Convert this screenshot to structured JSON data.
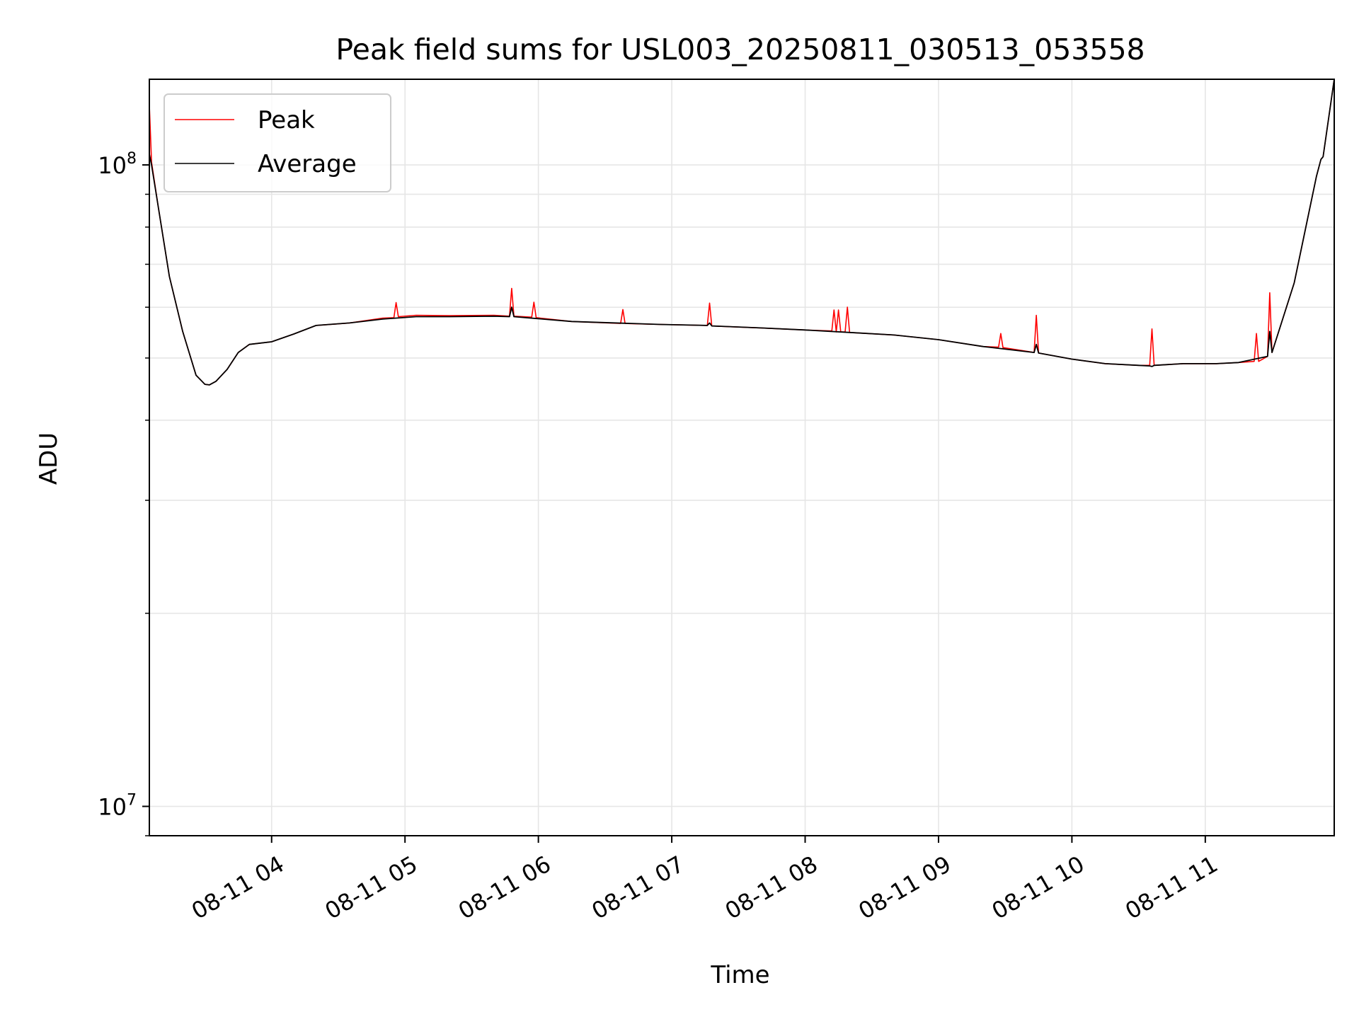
{
  "chart_data": {
    "type": "line",
    "title": "Peak field sums for USL003_20250811_030513_053558",
    "xlabel": "Time",
    "ylabel": "ADU",
    "y_scale": "log",
    "ylim": [
      9000000,
      136000000
    ],
    "xlim": [
      "2025-08-11 03:05",
      "2025-08-11 11:58"
    ],
    "x_ticks": [
      "2025-08-11 04:00",
      "2025-08-11 05:00",
      "2025-08-11 06:00",
      "2025-08-11 07:00",
      "2025-08-11 08:00",
      "2025-08-11 09:00",
      "2025-08-11 10:00",
      "2025-08-11 11:00"
    ],
    "x_tick_labels": [
      "08-11 04",
      "08-11 05",
      "08-11 06",
      "08-11 07",
      "08-11 08",
      "08-11 09",
      "08-11 10",
      "08-11 11"
    ],
    "y_major_ticks": [
      10000000,
      100000000
    ],
    "y_major_labels": [
      {
        "base": "10",
        "exp": "7"
      },
      {
        "base": "10",
        "exp": "8"
      }
    ],
    "grid": true,
    "legend_position": "top-left",
    "series": [
      {
        "name": "Peak",
        "color": "#ff0000",
        "x": [
          "2025-08-11 03:05",
          "2025-08-11 03:06",
          "2025-08-11 03:09",
          "2025-08-11 03:14",
          "2025-08-11 03:20",
          "2025-08-11 03:26",
          "2025-08-11 03:30",
          "2025-08-11 03:32",
          "2025-08-11 03:35",
          "2025-08-11 03:40",
          "2025-08-11 03:45",
          "2025-08-11 03:50",
          "2025-08-11 04:00",
          "2025-08-11 04:10",
          "2025-08-11 04:20",
          "2025-08-11 04:35",
          "2025-08-11 04:50",
          "2025-08-11 04:55",
          "2025-08-11 04:56",
          "2025-08-11 04:57",
          "2025-08-11 05:05",
          "2025-08-11 05:20",
          "2025-08-11 05:40",
          "2025-08-11 05:47",
          "2025-08-11 05:48",
          "2025-08-11 05:49",
          "2025-08-11 05:57",
          "2025-08-11 05:58",
          "2025-08-11 05:59",
          "2025-08-11 06:15",
          "2025-08-11 06:37",
          "2025-08-11 06:38",
          "2025-08-11 06:39",
          "2025-08-11 06:55",
          "2025-08-11 07:16",
          "2025-08-11 07:17",
          "2025-08-11 07:18",
          "2025-08-11 07:40",
          "2025-08-11 08:00",
          "2025-08-11 08:12",
          "2025-08-11 08:13",
          "2025-08-11 08:14",
          "2025-08-11 08:15",
          "2025-08-11 08:16",
          "2025-08-11 08:18",
          "2025-08-11 08:19",
          "2025-08-11 08:20",
          "2025-08-11 08:40",
          "2025-08-11 09:00",
          "2025-08-11 09:20",
          "2025-08-11 09:27",
          "2025-08-11 09:28",
          "2025-08-11 09:29",
          "2025-08-11 09:43",
          "2025-08-11 09:44",
          "2025-08-11 09:45",
          "2025-08-11 10:00",
          "2025-08-11 10:15",
          "2025-08-11 10:30",
          "2025-08-11 10:35",
          "2025-08-11 10:36",
          "2025-08-11 10:37",
          "2025-08-11 10:50",
          "2025-08-11 11:05",
          "2025-08-11 11:15",
          "2025-08-11 11:22",
          "2025-08-11 11:23",
          "2025-08-11 11:24",
          "2025-08-11 11:28",
          "2025-08-11 11:29",
          "2025-08-11 11:30",
          "2025-08-11 11:40",
          "2025-08-11 11:50",
          "2025-08-11 11:52",
          "2025-08-11 11:53",
          "2025-08-11 11:58"
        ],
        "values": [
          124000000,
          101000000,
          86000000,
          67000000,
          55000000,
          47000000,
          45500000,
          45400000,
          46000000,
          48000000,
          51000000,
          52500000,
          53000000,
          54500000,
          56200000,
          56700000,
          57700000,
          57800000,
          61000000,
          58000000,
          58300000,
          58200000,
          58300000,
          58100000,
          64200000,
          58100000,
          57900000,
          61100000,
          57800000,
          57000000,
          56600000,
          59500000,
          56600000,
          56400000,
          56200000,
          60900000,
          56100000,
          55700000,
          55300000,
          55100000,
          59400000,
          54900000,
          59400000,
          54900000,
          54900000,
          60000000,
          54800000,
          54300000,
          53400000,
          52100000,
          52000000,
          54600000,
          51900000,
          51000000,
          58300000,
          50900000,
          49800000,
          49000000,
          48700000,
          48700000,
          55500000,
          48700000,
          49000000,
          49000000,
          49200000,
          49400000,
          54600000,
          49400000,
          50300000,
          63200000,
          51000000,
          65500000,
          96000000,
          102000000,
          103000000,
          136000000
        ]
      },
      {
        "name": "Average",
        "color": "#000000",
        "x": [
          "2025-08-11 03:05",
          "2025-08-11 03:06",
          "2025-08-11 03:09",
          "2025-08-11 03:14",
          "2025-08-11 03:20",
          "2025-08-11 03:26",
          "2025-08-11 03:30",
          "2025-08-11 03:32",
          "2025-08-11 03:35",
          "2025-08-11 03:40",
          "2025-08-11 03:45",
          "2025-08-11 03:50",
          "2025-08-11 04:00",
          "2025-08-11 04:10",
          "2025-08-11 04:20",
          "2025-08-11 04:35",
          "2025-08-11 04:50",
          "2025-08-11 05:05",
          "2025-08-11 05:20",
          "2025-08-11 05:40",
          "2025-08-11 05:47",
          "2025-08-11 05:48",
          "2025-08-11 05:49",
          "2025-08-11 06:15",
          "2025-08-11 06:55",
          "2025-08-11 07:16",
          "2025-08-11 07:17",
          "2025-08-11 07:18",
          "2025-08-11 07:40",
          "2025-08-11 08:00",
          "2025-08-11 08:20",
          "2025-08-11 08:40",
          "2025-08-11 09:00",
          "2025-08-11 09:20",
          "2025-08-11 09:43",
          "2025-08-11 09:44",
          "2025-08-11 09:45",
          "2025-08-11 10:00",
          "2025-08-11 10:15",
          "2025-08-11 10:30",
          "2025-08-11 10:35",
          "2025-08-11 10:36",
          "2025-08-11 10:37",
          "2025-08-11 10:50",
          "2025-08-11 11:05",
          "2025-08-11 11:15",
          "2025-08-11 11:28",
          "2025-08-11 11:29",
          "2025-08-11 11:30",
          "2025-08-11 11:40",
          "2025-08-11 11:50",
          "2025-08-11 11:52",
          "2025-08-11 11:53",
          "2025-08-11 11:58"
        ],
        "values": [
          104000000,
          100000000,
          86000000,
          67000000,
          55000000,
          47000000,
          45500000,
          45400000,
          46000000,
          48000000,
          51000000,
          52500000,
          53000000,
          54500000,
          56200000,
          56700000,
          57500000,
          58000000,
          58000000,
          58100000,
          58000000,
          60000000,
          58000000,
          57000000,
          56400000,
          56200000,
          56700000,
          56100000,
          55700000,
          55300000,
          54800000,
          54300000,
          53400000,
          52100000,
          51000000,
          52500000,
          50900000,
          49800000,
          49000000,
          48700000,
          48600000,
          48500000,
          48700000,
          49000000,
          49000000,
          49200000,
          50300000,
          55000000,
          51000000,
          65500000,
          96000000,
          102000000,
          103000000,
          136000000
        ]
      }
    ]
  }
}
